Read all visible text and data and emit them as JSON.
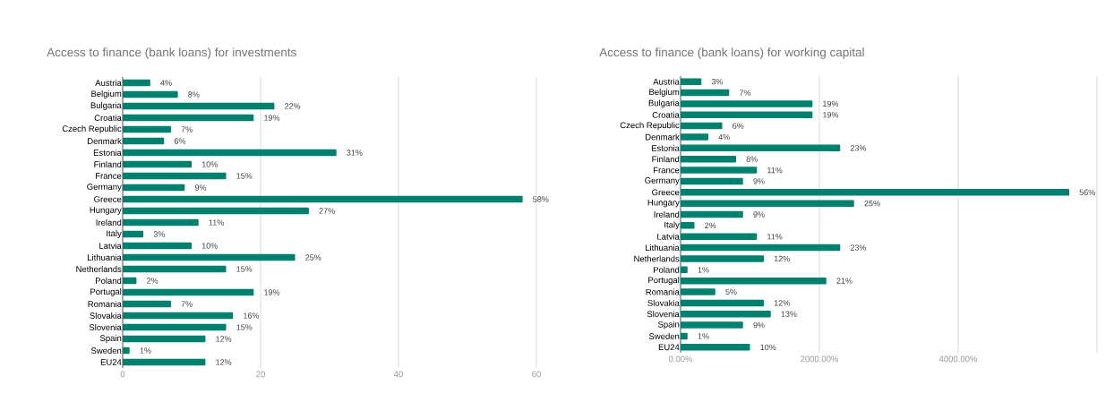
{
  "chart_data": [
    {
      "type": "bar",
      "orientation": "horizontal",
      "title": "Access to finance (bank loans) for investments",
      "categories": [
        "Austria",
        "Belgium",
        "Bulgaria",
        "Croatia",
        "Czech Republic",
        "Denmark",
        "Estonia",
        "Finland",
        "France",
        "Germany",
        "Greece",
        "Hungary",
        "Ireland",
        "Italy",
        "Latvia",
        "Lithuania",
        "Netherlands",
        "Poland",
        "Portugal",
        "Romania",
        "Slovakia",
        "Slovenia",
        "Spain",
        "Sweden",
        "EU24"
      ],
      "values": [
        4,
        8,
        22,
        19,
        7,
        6,
        31,
        10,
        15,
        9,
        58,
        27,
        11,
        3,
        10,
        25,
        15,
        2,
        19,
        7,
        16,
        15,
        12,
        1,
        12
      ],
      "value_labels": [
        "4%",
        "8%",
        "22%",
        "19%",
        "7%",
        "6%",
        "31%",
        "10%",
        "15%",
        "9%",
        "58%",
        "27%",
        "11%",
        "3%",
        "10%",
        "25%",
        "15%",
        "2%",
        "19%",
        "7%",
        "16%",
        "15%",
        "12%",
        "1%",
        "12%"
      ],
      "color": "#00806e",
      "xlim": [
        0,
        60
      ],
      "xticks": [
        0,
        20,
        40,
        60
      ],
      "grid": "x"
    },
    {
      "type": "bar",
      "orientation": "horizontal",
      "title": "Access to finance (bank loans) for working capital",
      "categories": [
        "Austria",
        "Belgium",
        "Bulgaria",
        "Croatia",
        "Czech Republic",
        "Denmark",
        "Estonia",
        "Finland",
        "France",
        "Germany",
        "Greece",
        "Hungary",
        "Ireland",
        "Italy",
        "Latvia",
        "Lithuania",
        "Netherlands",
        "Poland",
        "Portugal",
        "Romania",
        "Slovakia",
        "Slovenia",
        "Spain",
        "Sweden",
        "EU24"
      ],
      "values": [
        3,
        7,
        19,
        19,
        6,
        4,
        23,
        8,
        11,
        9,
        56,
        25,
        9,
        2,
        11,
        23,
        12,
        1,
        21,
        5,
        12,
        13,
        9,
        1,
        10
      ],
      "value_labels": [
        "3%",
        "7%",
        "19%",
        "19%",
        "6%",
        "4%",
        "23%",
        "8%",
        "11%",
        "9%",
        "56%",
        "25%",
        "9%",
        "2%",
        "11%",
        "23%",
        "12%",
        "1%",
        "21%",
        "5%",
        "12%",
        "13%",
        "9%",
        "1%",
        "10%"
      ],
      "color": "#00806e",
      "xlim": [
        0,
        60
      ],
      "xticks": [
        {
          "value": 0,
          "label": "0.00%"
        },
        {
          "value": 20,
          "label": "2000.00%"
        },
        {
          "value": 40,
          "label": "4000.00%"
        },
        {
          "value": 60,
          "label": null
        }
      ],
      "grid": "x"
    }
  ]
}
